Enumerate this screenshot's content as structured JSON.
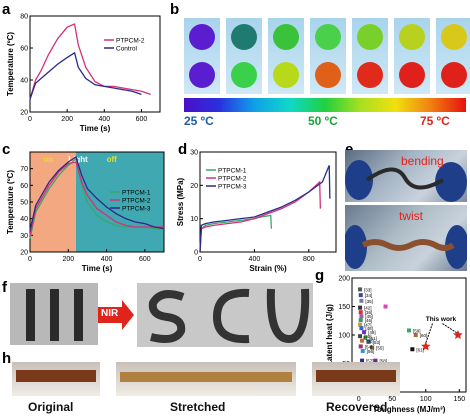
{
  "panels": {
    "a": {
      "label": "a"
    },
    "b": {
      "label": "b"
    },
    "c": {
      "label": "c"
    },
    "d": {
      "label": "d"
    },
    "e": {
      "label": "e"
    },
    "f": {
      "label": "f"
    },
    "g": {
      "label": "g"
    },
    "h": {
      "label": "h"
    }
  },
  "panel_b": {
    "temp_left": "25 ºC",
    "temp_mid": "50 ºC",
    "temp_right": "75 ºC",
    "colors_left": "#1e5fa6",
    "colors_mid": "#1aa33a",
    "colors_right": "#e0241c",
    "dot_rows": [
      [
        "#5a1ed0",
        "#1f7a70",
        "#3ac23a",
        "#4ad04a",
        "#7ad02a",
        "#b8d01e",
        "#d8c81a"
      ],
      [
        "#5a1ed0",
        "#3ad04a",
        "#b8d81a",
        "#e0601a",
        "#e02a1a",
        "#e0201a",
        "#e0201a"
      ]
    ]
  },
  "panel_c": {
    "on_label": "on",
    "light_label": "Light",
    "off_label": "off"
  },
  "panel_e": {
    "bending_label": "bending",
    "twist_label": "twist"
  },
  "panel_f": {
    "arrow_label": "NIR"
  },
  "panel_g": {
    "ref_labels": [
      "[33]",
      "[34]",
      "[35]",
      "[42]",
      "[36]",
      "[45]",
      "[46]",
      "[47]",
      "[48]",
      "[49]",
      "[50]",
      "[51]",
      "[52]",
      "[53]",
      "[54]",
      "[55]",
      "[56]",
      "[57]",
      "[58]",
      "[59]",
      "[60]",
      "[61]",
      "[62]"
    ],
    "this_work_label": "This work"
  },
  "panel_h": {
    "original_label": "Original",
    "stretched_label": "Stretched",
    "recovered_label": "Recovered"
  },
  "chart_data": [
    {
      "id": "a",
      "type": "line",
      "xlabel": "Time (s)",
      "ylabel": "Temperature (ºC)",
      "xlim": [
        0,
        700
      ],
      "ylim": [
        20,
        80
      ],
      "xticks": [
        0,
        200,
        400,
        600
      ],
      "yticks": [
        20,
        40,
        60,
        80
      ],
      "legend": "top-right",
      "series": [
        {
          "name": "PTPCM-2",
          "color": "#d6307a",
          "x": [
            0,
            30,
            60,
            100,
            150,
            200,
            240,
            260,
            300,
            350,
            400,
            450,
            500,
            550,
            600,
            650
          ],
          "y": [
            28,
            40,
            46,
            56,
            66,
            73,
            75,
            62,
            48,
            39,
            36,
            36,
            35,
            34,
            33,
            31
          ]
        },
        {
          "name": "Control",
          "color": "#2a2a8c",
          "x": [
            0,
            30,
            60,
            100,
            150,
            200,
            240,
            260,
            300,
            350,
            400,
            450,
            500,
            550,
            600
          ],
          "y": [
            28,
            38,
            41,
            45,
            50,
            54,
            57,
            48,
            41,
            37,
            36,
            35,
            34,
            33,
            31
          ]
        }
      ]
    },
    {
      "id": "c",
      "type": "line",
      "xlabel": "Time (s)",
      "ylabel": "Temperature (ºC)",
      "xlim": [
        0,
        700
      ],
      "ylim": [
        20,
        80
      ],
      "xticks": [
        0,
        200,
        400,
        600
      ],
      "yticks": [
        20,
        30,
        40,
        50,
        60,
        70
      ],
      "legend": "right",
      "series": [
        {
          "name": "PTPCM-1",
          "color": "#3aa86a",
          "x": [
            0,
            30,
            60,
            100,
            150,
            200,
            240,
            270,
            300,
            350,
            400,
            450,
            500,
            550,
            600,
            650,
            700
          ],
          "y": [
            28,
            44,
            50,
            58,
            66,
            72,
            76,
            60,
            50,
            42,
            38,
            36,
            35,
            35,
            35,
            34,
            34
          ]
        },
        {
          "name": "PTPCM-2",
          "color": "#d6307a",
          "x": [
            0,
            30,
            60,
            100,
            150,
            200,
            240,
            270,
            300,
            350,
            400,
            450,
            500,
            550,
            600,
            650,
            700
          ],
          "y": [
            30,
            46,
            52,
            60,
            68,
            73,
            74,
            62,
            54,
            46,
            42,
            38,
            36,
            35,
            35,
            35,
            35
          ]
        },
        {
          "name": "PTPCM-3",
          "color": "#2a2a8c",
          "x": [
            0,
            30,
            60,
            100,
            150,
            200,
            240,
            270,
            300,
            350,
            400,
            450,
            500,
            550,
            600,
            650,
            700
          ],
          "y": [
            33,
            48,
            54,
            62,
            69,
            74,
            77,
            66,
            58,
            52,
            47,
            43,
            40,
            38,
            37,
            35,
            34
          ]
        }
      ]
    },
    {
      "id": "d",
      "type": "line",
      "xlabel": "Strain (%)",
      "ylabel": "Stress (MPa)",
      "xlim": [
        0,
        1000
      ],
      "ylim": [
        0,
        30
      ],
      "xticks": [
        0,
        400,
        800
      ],
      "yticks": [
        0,
        10,
        20,
        30
      ],
      "legend": "top-left",
      "series": [
        {
          "name": "PTPCM-1",
          "color": "#3aa86a",
          "x": [
            0,
            10,
            40,
            100,
            200,
            300,
            400,
            450,
            520,
            525
          ],
          "y": [
            0,
            7,
            8,
            8.5,
            9,
            9.5,
            10,
            10.5,
            11,
            7
          ]
        },
        {
          "name": "PTPCM-2",
          "color": "#d6307a",
          "x": [
            0,
            10,
            40,
            100,
            200,
            300,
            400,
            500,
            600,
            700,
            800,
            880,
            885
          ],
          "y": [
            0,
            7,
            7.5,
            8,
            8.5,
            9,
            10,
            11.5,
            13,
            15,
            18,
            21,
            13
          ]
        },
        {
          "name": "PTPCM-3",
          "color": "#2a2a8c",
          "x": [
            0,
            10,
            40,
            100,
            200,
            300,
            400,
            500,
            600,
            700,
            800,
            900,
            950,
            955
          ],
          "y": [
            0,
            8,
            8.5,
            9,
            9.5,
            10,
            10.5,
            12,
            13.5,
            15.5,
            18,
            21,
            26,
            16
          ]
        }
      ]
    },
    {
      "id": "g",
      "type": "scatter",
      "xlabel": "Toughness (MJ/m³)",
      "ylabel": "Latent heat (J/g)",
      "xlim": [
        -10,
        160
      ],
      "ylim": [
        0,
        200
      ],
      "xticks": [
        0,
        50,
        100,
        150
      ],
      "yticks": [
        0,
        50,
        100,
        150,
        200
      ],
      "points": [
        {
          "x": 2,
          "y": 180,
          "color": "#555555"
        },
        {
          "x": 3,
          "y": 170,
          "color": "#444499"
        },
        {
          "x": 4,
          "y": 160,
          "color": "#7777aa"
        },
        {
          "x": 2,
          "y": 148,
          "color": "#333333"
        },
        {
          "x": 3,
          "y": 140,
          "color": "#cc3333"
        },
        {
          "x": 4,
          "y": 133,
          "color": "#aa55aa"
        },
        {
          "x": 3,
          "y": 126,
          "color": "#339966"
        },
        {
          "x": 2,
          "y": 118,
          "color": "#cc9933"
        },
        {
          "x": 4,
          "y": 112,
          "color": "#3366cc"
        },
        {
          "x": 8,
          "y": 105,
          "color": "#6633cc"
        },
        {
          "x": 2,
          "y": 98,
          "color": "#444444"
        },
        {
          "x": 10,
          "y": 95,
          "color": "#44aa44"
        },
        {
          "x": 5,
          "y": 90,
          "color": "#cc6633"
        },
        {
          "x": 15,
          "y": 88,
          "color": "#336699"
        },
        {
          "x": 3,
          "y": 80,
          "color": "#993366"
        },
        {
          "x": 20,
          "y": 78,
          "color": "#666633"
        },
        {
          "x": 6,
          "y": 72,
          "color": "#3399cc"
        },
        {
          "x": 5,
          "y": 55,
          "color": "#2a2a8c"
        },
        {
          "x": 25,
          "y": 55,
          "color": "#6b2a8c"
        },
        {
          "x": 40,
          "y": 150,
          "color": "#e040c0"
        },
        {
          "x": 75,
          "y": 108,
          "color": "#3aa86a"
        },
        {
          "x": 85,
          "y": 100,
          "color": "#aa6633"
        },
        {
          "x": 80,
          "y": 75,
          "color": "#111111"
        },
        {
          "x": 3,
          "y": 10,
          "color": "#cc2222"
        },
        {
          "x": 100,
          "y": 80,
          "color": "#e0241c",
          "marker": "star"
        },
        {
          "x": 148,
          "y": 100,
          "color": "#e0241c",
          "marker": "star"
        }
      ]
    }
  ]
}
